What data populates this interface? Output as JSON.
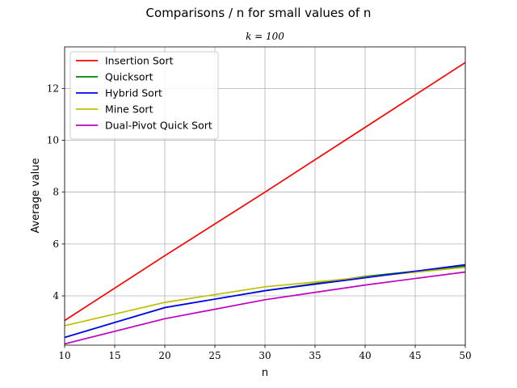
{
  "chart_data": {
    "type": "line",
    "title": "Comparisons / n for small values of n",
    "subtitle": "k = 100",
    "xlabel": "n",
    "ylabel": "Average value",
    "x": [
      10,
      20,
      30,
      40,
      50
    ],
    "xlim": [
      10,
      50
    ],
    "ylim": [
      2.1,
      13.6
    ],
    "xticks": [
      10,
      15,
      20,
      25,
      30,
      35,
      40,
      45,
      50
    ],
    "yticks": [
      4,
      6,
      8,
      10,
      12
    ],
    "grid": true,
    "legend_position": "top-left",
    "series": [
      {
        "name": "Insertion Sort",
        "color": "#ff0000",
        "values": [
          3.05,
          5.55,
          8.0,
          10.5,
          13.0
        ]
      },
      {
        "name": "Quicksort",
        "color": "#008000",
        "values": [
          2.4,
          3.55,
          4.2,
          4.75,
          5.15
        ]
      },
      {
        "name": "Hybrid Sort",
        "color": "#0000ff",
        "values": [
          2.4,
          3.55,
          4.2,
          4.7,
          5.2
        ]
      },
      {
        "name": "Mine Sort",
        "color": "#bfbf00",
        "values": [
          2.85,
          3.75,
          4.35,
          4.72,
          5.1
        ]
      },
      {
        "name": "Dual-Pivot Quick Sort",
        "color": "#bf00bf",
        "values": [
          2.15,
          3.12,
          3.85,
          4.42,
          4.92
        ]
      }
    ]
  }
}
